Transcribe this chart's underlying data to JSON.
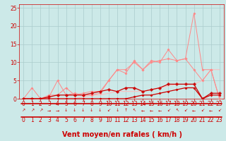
{
  "bg_color": "#cce9e8",
  "grid_color": "#aacccc",
  "xlabel": "Vent moyen/en rafales ( km/h )",
  "xlabel_color": "#cc0000",
  "xlabel_fontsize": 7,
  "tick_color": "#cc0000",
  "tick_fontsize": 5.5,
  "ylim": [
    0,
    26
  ],
  "xlim": [
    -0.5,
    23.5
  ],
  "yticks": [
    0,
    5,
    10,
    15,
    20,
    25
  ],
  "xticks": [
    0,
    1,
    2,
    3,
    4,
    5,
    6,
    7,
    8,
    9,
    10,
    11,
    12,
    13,
    14,
    15,
    16,
    17,
    18,
    19,
    20,
    21,
    22,
    23
  ],
  "lines": [
    {
      "x": [
        0,
        1,
        2,
        3,
        4,
        5,
        6,
        7,
        8,
        9,
        10,
        11,
        12,
        13,
        14,
        15,
        16,
        17,
        18,
        19,
        20,
        21,
        22,
        23
      ],
      "y": [
        0,
        0,
        0,
        0,
        0,
        0,
        0,
        0,
        0,
        0,
        0,
        0,
        0,
        0.5,
        1,
        1,
        1.5,
        2,
        2.5,
        3,
        3,
        0,
        1,
        1
      ],
      "color": "#cc0000",
      "lw": 0.9,
      "marker": "D",
      "ms": 1.5,
      "alpha": 1.0,
      "zorder": 5
    },
    {
      "x": [
        0,
        1,
        2,
        3,
        4,
        5,
        6,
        7,
        8,
        9,
        10,
        11,
        12,
        13,
        14,
        15,
        16,
        17,
        18,
        19,
        20,
        21,
        22,
        23
      ],
      "y": [
        0,
        0,
        0,
        0.5,
        1,
        1,
        1,
        1,
        1.5,
        2,
        2.5,
        2,
        3,
        3,
        2,
        2.5,
        3,
        4,
        4,
        4,
        4,
        0,
        1.5,
        1.5
      ],
      "color": "#cc0000",
      "lw": 0.9,
      "marker": "P",
      "ms": 2.5,
      "alpha": 1.0,
      "zorder": 5
    },
    {
      "x": [
        0,
        1,
        2,
        3,
        4,
        5,
        6,
        7,
        8,
        9,
        10,
        11,
        12,
        13,
        14,
        15,
        16,
        17,
        18,
        19,
        20,
        21,
        22,
        23
      ],
      "y": [
        0,
        3,
        0,
        0.5,
        5,
        1,
        1.5,
        1,
        1,
        1.5,
        5,
        8,
        7,
        10.5,
        8,
        10.5,
        10,
        13.5,
        10.5,
        11,
        23.5,
        8,
        8,
        0
      ],
      "color": "#ff8888",
      "lw": 0.7,
      "marker": "D",
      "ms": 1.5,
      "alpha": 1.0,
      "zorder": 3
    },
    {
      "x": [
        0,
        1,
        2,
        3,
        4,
        5,
        6,
        7,
        8,
        9,
        10,
        11,
        12,
        13,
        14,
        15,
        16,
        17,
        18,
        19,
        20,
        21,
        22,
        23
      ],
      "y": [
        0,
        0,
        0,
        1,
        1,
        3,
        1,
        1.5,
        2,
        2,
        5,
        8,
        8,
        10,
        8,
        10,
        10.5,
        11,
        10.5,
        11,
        8,
        5,
        8,
        0
      ],
      "color": "#ff8888",
      "lw": 0.7,
      "marker": "P",
      "ms": 2.0,
      "alpha": 1.0,
      "zorder": 3
    },
    {
      "x": [
        0,
        1,
        2,
        3,
        4,
        5,
        6,
        7,
        8,
        9,
        10,
        11,
        12,
        13,
        14,
        15,
        16,
        17,
        18,
        19,
        20,
        21,
        22,
        23
      ],
      "y": [
        0,
        0,
        0,
        0,
        0,
        0,
        0,
        0.5,
        1,
        1,
        1.5,
        2,
        2,
        2,
        2,
        2.5,
        3,
        3.5,
        4,
        4,
        4,
        5,
        8,
        8
      ],
      "color": "#ffbbbb",
      "lw": 0.7,
      "marker": null,
      "ms": 0,
      "alpha": 1.0,
      "zorder": 2
    }
  ],
  "arrow_chars": [
    "↗",
    "↗",
    "↗",
    "→",
    "→",
    "↓",
    "↓",
    "↓",
    "↓",
    "↓",
    "↙",
    "↓",
    "↑",
    "↖",
    "←",
    "←",
    "←",
    "↙",
    "↖",
    "↙",
    "←",
    "↙",
    "←",
    "↙"
  ],
  "red_line_color": "#cc0000"
}
